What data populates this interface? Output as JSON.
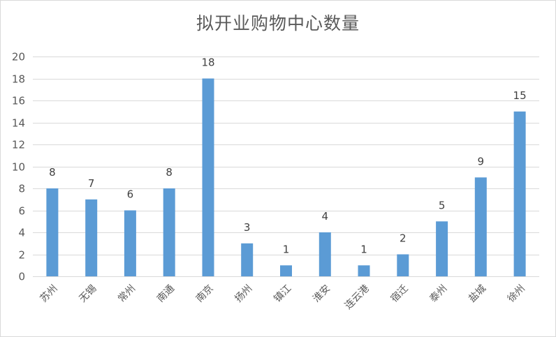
{
  "chart_data": {
    "type": "bar",
    "title": "拟开业购物中心数量",
    "xlabel": "",
    "ylabel": "",
    "categories": [
      "苏州",
      "无锡",
      "常州",
      "南通",
      "南京",
      "扬州",
      "镇江",
      "淮安",
      "连云港",
      "宿迁",
      "泰州",
      "盐城",
      "徐州"
    ],
    "values": [
      8,
      7,
      6,
      8,
      18,
      3,
      1,
      4,
      1,
      2,
      5,
      9,
      15
    ],
    "ylim": [
      0,
      20
    ],
    "yticks": [
      0,
      2,
      4,
      6,
      8,
      10,
      12,
      14,
      16,
      18,
      20
    ],
    "grid": true,
    "legend": "none",
    "data_labels": true,
    "colors": {
      "bar": "#5b9bd5",
      "grid": "#d9d9d9",
      "text": "#595959"
    }
  }
}
